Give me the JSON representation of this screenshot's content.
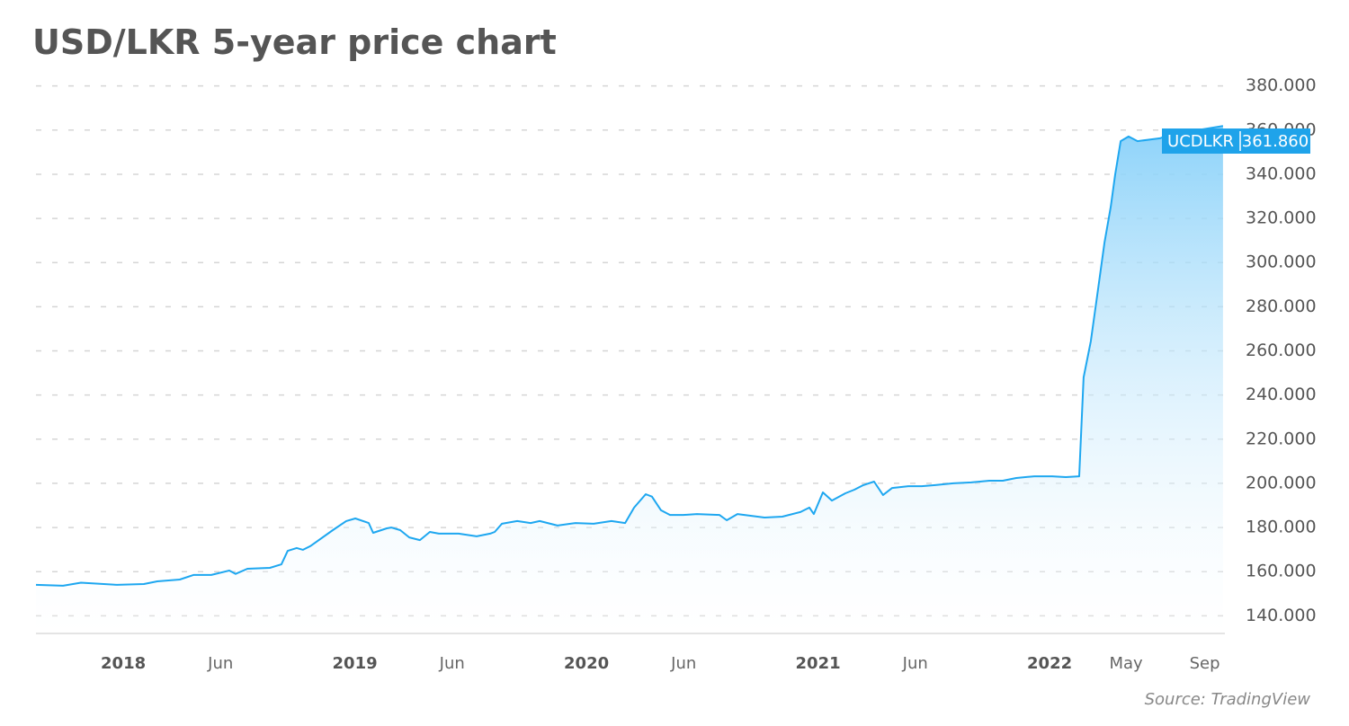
{
  "chart_data": {
    "type": "area",
    "title": "USD/LKR 5-year price chart",
    "source": "Source: TradingView",
    "end_label": "361.860",
    "xlim": [
      2017.623,
      2022.757
    ],
    "ylim": [
      132,
      388
    ],
    "xticks": [
      2018,
      {
        "value": 2018.42,
        "label": "Jun"
      },
      2019,
      {
        "value": 2019.42,
        "label": "Jun"
      },
      2020,
      {
        "value": 2020.42,
        "label": "Jun"
      },
      2021,
      {
        "value": 2021.42,
        "label": "Jun"
      },
      2022,
      {
        "value": 2022.33,
        "label": "May"
      },
      {
        "value": 2022.67,
        "label": "Sep"
      }
    ],
    "yticks": [
      {
        "value": 140,
        "label": "140.000"
      },
      {
        "value": 160,
        "label": "160.000"
      },
      {
        "value": 180,
        "label": "180.000"
      },
      {
        "value": 200,
        "label": "200.000"
      },
      {
        "value": 220,
        "label": "220.000"
      },
      {
        "value": 240,
        "label": "240.000"
      },
      {
        "value": 260,
        "label": "260.000"
      },
      {
        "value": 280,
        "label": "280.000"
      },
      {
        "value": 300,
        "label": "300.000"
      },
      {
        "value": 320,
        "label": "320.000"
      },
      {
        "value": 340,
        "label": "340.000"
      },
      {
        "value": 360,
        "label": "360.000"
      },
      {
        "value": 380,
        "label": "380.000"
      }
    ],
    "grid": true,
    "series": [
      {
        "name": "UCDLKR",
        "color": "#1ea7f0",
        "x": [
          2017.623,
          2017.74,
          2017.817,
          2017.973,
          2018.089,
          2018.147,
          2018.244,
          2018.303,
          2018.38,
          2018.458,
          2018.485,
          2018.536,
          2018.633,
          2018.683,
          2018.71,
          2018.749,
          2018.776,
          2018.807,
          2018.905,
          2018.963,
          2019.002,
          2019.06,
          2019.079,
          2019.138,
          2019.157,
          2019.196,
          2019.235,
          2019.281,
          2019.324,
          2019.363,
          2019.448,
          2019.526,
          2019.584,
          2019.604,
          2019.635,
          2019.701,
          2019.759,
          2019.798,
          2019.875,
          2019.953,
          2020.031,
          2020.108,
          2020.167,
          2020.206,
          2020.256,
          2020.283,
          2020.322,
          2020.361,
          2020.419,
          2020.477,
          2020.574,
          2020.606,
          2020.652,
          2020.769,
          2020.846,
          2020.924,
          2020.963,
          2020.982,
          2021.021,
          2021.06,
          2021.118,
          2021.157,
          2021.196,
          2021.242,
          2021.281,
          2021.32,
          2021.39,
          2021.448,
          2021.506,
          2021.584,
          2021.662,
          2021.74,
          2021.798,
          2021.856,
          2021.934,
          2022.011,
          2022.07,
          2022.128,
          2022.147,
          2022.178,
          2022.206,
          2022.237,
          2022.264,
          2022.283,
          2022.307,
          2022.341,
          2022.38,
          2022.439,
          2022.477,
          2022.516,
          2022.749
        ],
        "values": [
          154,
          153.6,
          155,
          154,
          154.4,
          155.6,
          156.4,
          158.5,
          158.5,
          160.5,
          159,
          161.3,
          161.7,
          163.3,
          169.4,
          170.7,
          169.9,
          171.5,
          178.8,
          182.9,
          184.1,
          182,
          177.6,
          179.6,
          180,
          178.8,
          175.5,
          174.3,
          178,
          177.2,
          177.2,
          176,
          177.2,
          178,
          181.7,
          182.9,
          182,
          182.9,
          180.9,
          182,
          181.7,
          182.9,
          182,
          189,
          195.1,
          194,
          187.8,
          185.7,
          185.7,
          186.1,
          185.7,
          183.3,
          186.1,
          184.5,
          184.9,
          187,
          189,
          186.1,
          195.9,
          192.2,
          195.5,
          197.1,
          199.2,
          200.8,
          194.7,
          197.9,
          198.7,
          198.7,
          199.2,
          200,
          200.4,
          201.2,
          201.2,
          202.4,
          203.2,
          203.2,
          202.8,
          203.2,
          248,
          264.3,
          285.4,
          309,
          325.3,
          339.6,
          355,
          357.1,
          355,
          355.8,
          356.3,
          357.9,
          361.86
        ]
      }
    ]
  }
}
